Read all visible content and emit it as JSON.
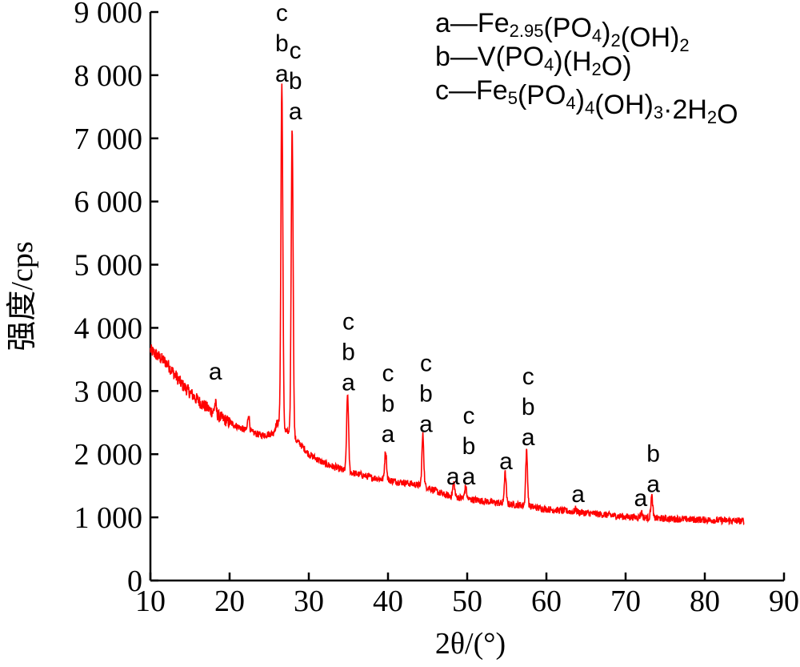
{
  "chart_data": {
    "type": "line",
    "title": "",
    "xlabel": "2θ/(°)",
    "ylabel": "强度/cps",
    "xlim": [
      10,
      90
    ],
    "ylim": [
      0,
      9000
    ],
    "x_ticks": [
      10,
      20,
      30,
      40,
      50,
      60,
      70,
      80,
      90
    ],
    "y_ticks": [
      0,
      1000,
      2000,
      3000,
      4000,
      5000,
      6000,
      7000,
      8000,
      9000
    ],
    "y_tick_labels": [
      "0",
      "1 000",
      "2 000",
      "3 000",
      "4 000",
      "5 000",
      "6 000",
      "7 000",
      "8 000",
      "9 000"
    ],
    "grid": false,
    "series": [
      {
        "color": "#ff0000",
        "x_range": [
          10,
          85
        ],
        "background": [
          [
            10,
            3650
          ],
          [
            12,
            3450
          ],
          [
            14,
            3100
          ],
          [
            16,
            2850
          ],
          [
            18,
            2650
          ],
          [
            20,
            2500
          ],
          [
            22,
            2380
          ],
          [
            24,
            2300
          ],
          [
            25.5,
            2330
          ],
          [
            26,
            2500
          ],
          [
            29,
            2150
          ],
          [
            30,
            2000
          ],
          [
            32,
            1850
          ],
          [
            35,
            1720
          ],
          [
            38,
            1630
          ],
          [
            40,
            1590
          ],
          [
            43,
            1530
          ],
          [
            45,
            1480
          ],
          [
            47,
            1360
          ],
          [
            50,
            1290
          ],
          [
            52,
            1260
          ],
          [
            55,
            1210
          ],
          [
            57,
            1190
          ],
          [
            60,
            1130
          ],
          [
            65,
            1070
          ],
          [
            70,
            1010
          ],
          [
            75,
            980
          ],
          [
            80,
            960
          ],
          [
            85,
            940
          ]
        ],
        "peaks": [
          {
            "x": 18.2,
            "y": 2800
          },
          {
            "x": 22.4,
            "y": 2620
          },
          {
            "x": 26.6,
            "y": 7850
          },
          {
            "x": 27.9,
            "y": 7150
          },
          {
            "x": 34.9,
            "y": 2950
          },
          {
            "x": 39.7,
            "y": 2050
          },
          {
            "x": 44.4,
            "y": 2300
          },
          {
            "x": 48.3,
            "y": 1550
          },
          {
            "x": 49.8,
            "y": 1480
          },
          {
            "x": 54.8,
            "y": 1700
          },
          {
            "x": 57.5,
            "y": 2050
          },
          {
            "x": 63.7,
            "y": 1130
          },
          {
            "x": 72.0,
            "y": 1080
          },
          {
            "x": 73.3,
            "y": 1330
          }
        ]
      }
    ],
    "peak_labels": [
      {
        "x": 18.2,
        "y": 3180,
        "lines": [
          "a"
        ]
      },
      {
        "x": 26.6,
        "y": 7900,
        "lines": [
          "c",
          "b",
          "a"
        ]
      },
      {
        "x": 28.3,
        "y": 7300,
        "lines": [
          "c",
          "b",
          "a"
        ]
      },
      {
        "x": 35.0,
        "y": 3010,
        "lines": [
          "c",
          "b",
          "a"
        ]
      },
      {
        "x": 40.0,
        "y": 2190,
        "lines": [
          "c",
          "b",
          "a"
        ]
      },
      {
        "x": 44.8,
        "y": 2350,
        "lines": [
          "c",
          "b",
          "a"
        ]
      },
      {
        "x": 48.2,
        "y": 1520,
        "lines": [
          "a"
        ]
      },
      {
        "x": 50.2,
        "y": 1520,
        "lines": [
          "c",
          "b",
          "a"
        ]
      },
      {
        "x": 54.9,
        "y": 1760,
        "lines": [
          "a"
        ]
      },
      {
        "x": 57.7,
        "y": 2140,
        "lines": [
          "c",
          "b",
          "a"
        ]
      },
      {
        "x": 64.0,
        "y": 1240,
        "lines": [
          "a"
        ]
      },
      {
        "x": 71.9,
        "y": 1180,
        "lines": [
          "a"
        ]
      },
      {
        "x": 73.5,
        "y": 1400,
        "lines": [
          "b",
          "a"
        ]
      }
    ],
    "legend": {
      "placement": "top-right",
      "entries": [
        {
          "key": "a",
          "formula": [
            [
              "Fe",
              ""
            ],
            [
              "2.95",
              "sub"
            ],
            [
              "(PO",
              ""
            ],
            [
              "4",
              "sub"
            ],
            [
              ")",
              ""
            ],
            [
              "2",
              "sub"
            ],
            [
              "(OH)",
              ""
            ],
            [
              "2",
              "sub"
            ]
          ]
        },
        {
          "key": "b",
          "formula": [
            [
              "V(PO",
              ""
            ],
            [
              "4",
              "sub"
            ],
            [
              ")(H",
              ""
            ],
            [
              "2",
              "sub"
            ],
            [
              "O)",
              ""
            ]
          ]
        },
        {
          "key": "c",
          "formula": [
            [
              "Fe",
              ""
            ],
            [
              "5",
              "sub"
            ],
            [
              "(PO",
              ""
            ],
            [
              "4",
              "sub"
            ],
            [
              ")",
              ""
            ],
            [
              "4",
              "sub"
            ],
            [
              "(OH)",
              ""
            ],
            [
              "3",
              "sub"
            ],
            [
              "·2H",
              ""
            ],
            [
              "2",
              "sub"
            ],
            [
              "O",
              ""
            ]
          ]
        }
      ]
    }
  }
}
